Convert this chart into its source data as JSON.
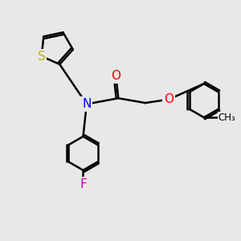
{
  "bg_color": "#e8e8e8",
  "bond_color": "#000000",
  "bond_width": 1.8,
  "S_color": "#b8b800",
  "N_color": "#0000ff",
  "O_color": "#ff0000",
  "F_color": "#cc00cc",
  "font_size": 11,
  "fig_size": [
    3.0,
    3.0
  ],
  "dpi": 100,
  "xlim": [
    0,
    10
  ],
  "ylim": [
    0,
    10
  ]
}
